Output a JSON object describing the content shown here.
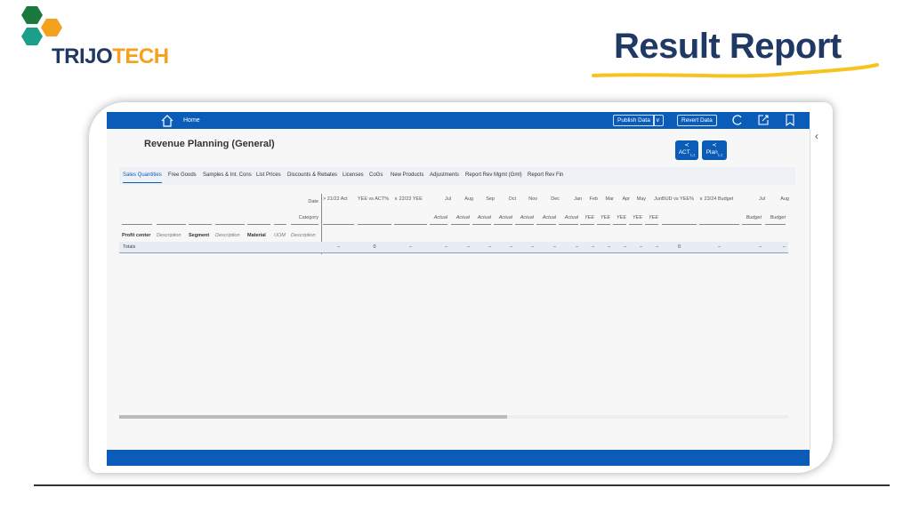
{
  "branding": {
    "logo_part1": "TRIJO",
    "logo_part2": "TECH",
    "slide_title": "Result Report",
    "colors": {
      "navy": "#1f3864",
      "orange": "#f4a11d",
      "green_dark": "#1a7a3e",
      "teal": "#1aa08a",
      "underline": "#f7c31c"
    }
  },
  "topbar": {
    "home_label": "Home",
    "publish_label": "Publish Data",
    "revert_label": "Revert Data",
    "icons": [
      "home-icon",
      "chevron-down-icon",
      "refresh-icon",
      "share-out-icon",
      "bookmark-icon"
    ],
    "color": "#0a5cb8"
  },
  "page": {
    "title": "Revenue Planning (General)",
    "share_buttons": [
      {
        "label": "ACT",
        "sub": "1,1"
      },
      {
        "label": "Plan",
        "sub": "1,1"
      }
    ]
  },
  "tabs": [
    "Sales Quantities",
    "Free Goods",
    "Samples & Int. Cons",
    "List Prices",
    "Discounts & Rebates",
    "Licenses",
    "CoGs",
    "New Products",
    "Adjustments",
    "Report Rev Mgmt (Gml)",
    "Report Rev Fin"
  ],
  "active_tab": "Sales Quantities",
  "table": {
    "date_label": "Date",
    "category_label": "Category",
    "row_dims": [
      "Profit center",
      "Description",
      "Segment",
      "Description",
      "Material",
      "UOM",
      "Description"
    ],
    "columns": [
      {
        "date": "> 21/22 Act",
        "category": "",
        "total": "–"
      },
      {
        "date": "YEE vs ACT%",
        "category": "",
        "total": "0"
      },
      {
        "date": "∨ 22/23 YEE",
        "category": "",
        "total": "–"
      },
      {
        "date": "Jul",
        "category": "Actual",
        "total": "–"
      },
      {
        "date": "Aug",
        "category": "Actual",
        "total": "–"
      },
      {
        "date": "Sep",
        "category": "Actual",
        "total": "–"
      },
      {
        "date": "Oct",
        "category": "Actual",
        "total": "–"
      },
      {
        "date": "Nov",
        "category": "Actual",
        "total": "–"
      },
      {
        "date": "Dec",
        "category": "Actual",
        "total": "–"
      },
      {
        "date": "Jan",
        "category": "Actual",
        "total": "–"
      },
      {
        "date": "Feb",
        "category": "YEE",
        "total": "–"
      },
      {
        "date": "Mar",
        "category": "YEE",
        "total": "–"
      },
      {
        "date": "Apr",
        "category": "YEE",
        "total": "–"
      },
      {
        "date": "May",
        "category": "YEE",
        "total": "–"
      },
      {
        "date": "Jun",
        "category": "YEE",
        "total": "–"
      },
      {
        "date": "BUD vs YEE%",
        "category": "",
        "total": "0"
      },
      {
        "date": "∨ 23/24 Budget",
        "category": "",
        "total": "–"
      },
      {
        "date": "Jul",
        "category": "Budget",
        "total": "–"
      },
      {
        "date": "Aug",
        "category": "Budget",
        "total": "–"
      }
    ],
    "totals_label": "Totals"
  },
  "scroll": {
    "horizontal_position_percent": 58
  }
}
